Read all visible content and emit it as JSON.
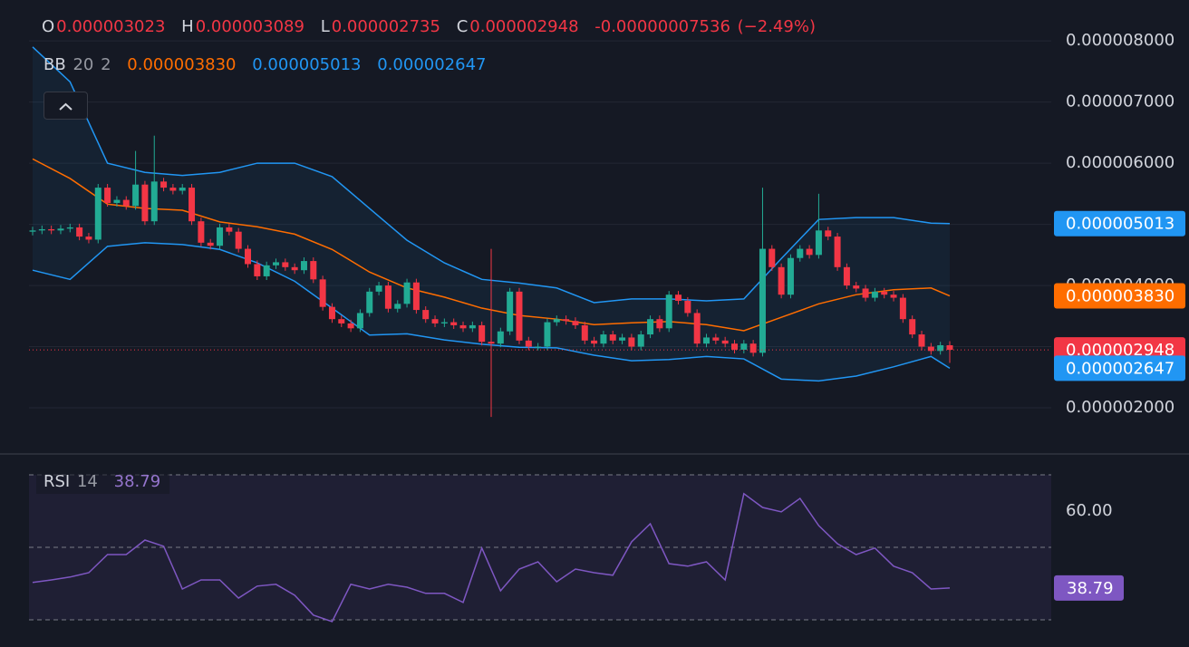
{
  "chart_data": [
    {
      "type": "candlestick",
      "legend": {
        "items": [
          {
            "key": "O",
            "value": 3.023e-06,
            "label": "0.000003023"
          },
          {
            "key": "H",
            "value": 3.089e-06,
            "label": "0.000003089"
          },
          {
            "key": "L",
            "value": 2.735e-06,
            "label": "0.000002735"
          },
          {
            "key": "C",
            "value": 2.948e-06,
            "label": "0.000002948"
          }
        ],
        "change": {
          "value": -7.536e-08,
          "label": "-0.00000007536"
        },
        "change_percent": {
          "value": -2.49,
          "label": "(−2.49%)"
        }
      },
      "open": [
        4.88e-06,
        4.9e-06,
        4.92e-06,
        4.9e-06,
        4.93e-06,
        4.95e-06,
        4.8e-06,
        4.75e-06,
        5.6e-06,
        5.35e-06,
        5.4e-06,
        5.3e-06,
        5.65e-06,
        5.05e-06,
        5.7e-06,
        5.6e-06,
        5.55e-06,
        5.6e-06,
        5.05e-06,
        4.7e-06,
        4.65e-06,
        4.95e-06,
        4.88e-06,
        4.6e-06,
        4.35e-06,
        4.15e-06,
        4.33e-06,
        4.38e-06,
        4.3e-06,
        4.25e-06,
        4.4e-06,
        4.1e-06,
        3.65e-06,
        3.45e-06,
        3.38e-06,
        3.3e-06,
        3.55e-06,
        3.9e-06,
        4e-06,
        3.62e-06,
        3.7e-06,
        4.05e-06,
        3.6e-06,
        3.45e-06,
        3.38e-06,
        3.4e-06,
        3.35e-06,
        3.3e-06,
        3.35e-06,
        3.08e-06,
        3.05e-06,
        3.25e-06,
        3.9e-06,
        3.1e-06,
        3e-06,
        3e-06,
        3.4e-06,
        3.45e-06,
        3.42e-06,
        3.35e-06,
        3.1e-06,
        3.05e-06,
        3.2e-06,
        3.1e-06,
        3.15e-06,
        3e-06,
        3.2e-06,
        3.45e-06,
        3.3e-06,
        3.85e-06,
        3.75e-06,
        3.55e-06,
        3.05e-06,
        3.15e-06,
        3.1e-06,
        3.05e-06,
        2.95e-06,
        3.05e-06,
        2.9e-06,
        4.6e-06,
        4.3e-06,
        3.85e-06,
        4.45e-06,
        4.6e-06,
        4.5e-06,
        4.9e-06,
        4.8e-06,
        4.3e-06,
        4e-06,
        3.95e-06,
        3.8e-06,
        3.9e-06,
        3.85e-06,
        3.8e-06,
        3.45e-06,
        3.2e-06,
        3e-06,
        2.93e-06,
        3.023e-06
      ],
      "high": [
        4.96e-06,
        4.98e-06,
        4.98e-06,
        4.99e-06,
        5.01e-06,
        5.01e-06,
        4.86e-06,
        5.66e-06,
        5.66e-06,
        5.46e-06,
        5.46e-06,
        6.2e-06,
        5.71e-06,
        6.45e-06,
        5.76e-06,
        5.66e-06,
        5.66e-06,
        5.66e-06,
        5.11e-06,
        4.76e-06,
        5.01e-06,
        5.01e-06,
        4.94e-06,
        4.66e-06,
        4.41e-06,
        4.39e-06,
        4.44e-06,
        4.44e-06,
        4.36e-06,
        4.46e-06,
        4.46e-06,
        4.16e-06,
        3.71e-06,
        3.51e-06,
        3.44e-06,
        3.61e-06,
        3.96e-06,
        4.06e-06,
        4.06e-06,
        3.76e-06,
        4.11e-06,
        4.11e-06,
        3.66e-06,
        3.51e-06,
        3.46e-06,
        3.46e-06,
        3.41e-06,
        3.41e-06,
        3.41e-06,
        4.6e-06,
        3.31e-06,
        3.96e-06,
        3.96e-06,
        3.16e-06,
        3.06e-06,
        3.46e-06,
        3.51e-06,
        3.51e-06,
        3.48e-06,
        3.41e-06,
        3.16e-06,
        3.26e-06,
        3.26e-06,
        3.21e-06,
        3.21e-06,
        3.26e-06,
        3.51e-06,
        3.51e-06,
        3.91e-06,
        3.91e-06,
        3.81e-06,
        3.61e-06,
        3.21e-06,
        3.21e-06,
        3.16e-06,
        3.11e-06,
        3.11e-06,
        3.11e-06,
        5.6e-06,
        4.66e-06,
        4.36e-06,
        4.51e-06,
        4.66e-06,
        4.66e-06,
        5.5e-06,
        4.96e-06,
        4.86e-06,
        4.36e-06,
        4.06e-06,
        4.01e-06,
        3.96e-06,
        3.96e-06,
        3.91e-06,
        3.86e-06,
        3.51e-06,
        3.26e-06,
        3.06e-06,
        3.08e-06,
        3.089e-06
      ],
      "low": [
        4.82e-06,
        4.84e-06,
        4.84e-06,
        4.84e-06,
        4.87e-06,
        4.74e-06,
        4.69e-06,
        4.69e-06,
        5.29e-06,
        5.29e-06,
        5.24e-06,
        5.24e-06,
        4.99e-06,
        4.99e-06,
        5.54e-06,
        5.49e-06,
        5.49e-06,
        4.99e-06,
        4.64e-06,
        4.59e-06,
        4.59e-06,
        4.82e-06,
        4.54e-06,
        4.29e-06,
        4.09e-06,
        4.09e-06,
        4.27e-06,
        4.24e-06,
        4.19e-06,
        4.19e-06,
        4.04e-06,
        3.59e-06,
        3.39e-06,
        3.32e-06,
        3.24e-06,
        3.24e-06,
        3.49e-06,
        3.84e-06,
        3.56e-06,
        3.56e-06,
        3.64e-06,
        3.54e-06,
        3.39e-06,
        3.32e-06,
        3.32e-06,
        3.29e-06,
        3.24e-06,
        3.24e-06,
        3.02e-06,
        1.85e-06,
        2.99e-06,
        3.19e-06,
        3.04e-06,
        2.94e-06,
        2.94e-06,
        2.94e-06,
        3.34e-06,
        3.36e-06,
        3.29e-06,
        3.04e-06,
        2.99e-06,
        2.99e-06,
        3.04e-06,
        3.04e-06,
        2.94e-06,
        2.94e-06,
        3.14e-06,
        3.24e-06,
        3.24e-06,
        3.69e-06,
        3.49e-06,
        2.99e-06,
        2.99e-06,
        3.04e-06,
        2.99e-06,
        2.89e-06,
        2.89e-06,
        2.84e-06,
        2.84e-06,
        4.24e-06,
        3.79e-06,
        3.79e-06,
        4.39e-06,
        4.44e-06,
        4.44e-06,
        4.74e-06,
        4.24e-06,
        3.94e-06,
        3.89e-06,
        3.74e-06,
        3.74e-06,
        3.79e-06,
        3.74e-06,
        3.39e-06,
        3.14e-06,
        2.94e-06,
        2.87e-06,
        2.87e-06,
        2.735e-06
      ],
      "close": [
        4.9e-06,
        4.92e-06,
        4.9e-06,
        4.93e-06,
        4.95e-06,
        4.8e-06,
        4.75e-06,
        5.6e-06,
        5.35e-06,
        5.4e-06,
        5.3e-06,
        5.65e-06,
        5.05e-06,
        5.7e-06,
        5.6e-06,
        5.55e-06,
        5.6e-06,
        5.05e-06,
        4.7e-06,
        4.65e-06,
        4.95e-06,
        4.88e-06,
        4.6e-06,
        4.35e-06,
        4.15e-06,
        4.33e-06,
        4.38e-06,
        4.3e-06,
        4.25e-06,
        4.4e-06,
        4.1e-06,
        3.65e-06,
        3.45e-06,
        3.38e-06,
        3.3e-06,
        3.55e-06,
        3.9e-06,
        4e-06,
        3.62e-06,
        3.7e-06,
        4.05e-06,
        3.6e-06,
        3.45e-06,
        3.38e-06,
        3.4e-06,
        3.35e-06,
        3.3e-06,
        3.35e-06,
        3.08e-06,
        3.05e-06,
        3.25e-06,
        3.9e-06,
        3.1e-06,
        3e-06,
        3e-06,
        3.4e-06,
        3.45e-06,
        3.42e-06,
        3.35e-06,
        3.1e-06,
        3.05e-06,
        3.2e-06,
        3.1e-06,
        3.15e-06,
        3e-06,
        3.2e-06,
        3.45e-06,
        3.3e-06,
        3.85e-06,
        3.75e-06,
        3.55e-06,
        3.05e-06,
        3.15e-06,
        3.1e-06,
        3.05e-06,
        2.95e-06,
        3.05e-06,
        2.9e-06,
        4.6e-06,
        4.3e-06,
        3.85e-06,
        4.45e-06,
        4.6e-06,
        4.5e-06,
        4.9e-06,
        4.8e-06,
        4.3e-06,
        4e-06,
        3.95e-06,
        3.8e-06,
        3.9e-06,
        3.85e-06,
        3.8e-06,
        3.45e-06,
        3.2e-06,
        3e-06,
        2.93e-06,
        3.023e-06,
        2.948e-06
      ],
      "up_color": "#22ab94",
      "down_color": "#f23645",
      "ylim": [
        1.26e-06,
        8.52e-06
      ],
      "yticks": [
        {
          "value": 2e-06,
          "label": "0.000002000"
        },
        {
          "value": 3e-06,
          "label": "0.000003000"
        },
        {
          "value": 4e-06,
          "label": "0.000004000"
        },
        {
          "value": 5e-06,
          "label": "0.000005000"
        },
        {
          "value": 6e-06,
          "label": "0.000006000"
        },
        {
          "value": 7e-06,
          "label": "0.000007000"
        },
        {
          "value": 8e-06,
          "label": "0.000008000"
        }
      ],
      "grid": true,
      "last_price_line": true,
      "bollinger": {
        "name": "BB",
        "period": 20,
        "stddev": 2,
        "fill": "rgba(33,150,243,0.07)",
        "candle_index": [
          0,
          4,
          8,
          12,
          16,
          20,
          24,
          28,
          32,
          36,
          40,
          44,
          48,
          52,
          56,
          60,
          64,
          68,
          72,
          76,
          80,
          84,
          88,
          92,
          96,
          98
        ],
        "middle": {
          "color": "#ff6d00",
          "values": [
            6.07e-06,
            5.75e-06,
            5.33e-06,
            5.26e-06,
            5.23e-06,
            5.04e-06,
            4.96e-06,
            4.84e-06,
            4.59e-06,
            4.22e-06,
            3.96e-06,
            3.81e-06,
            3.63e-06,
            3.51e-06,
            3.45e-06,
            3.36e-06,
            3.39e-06,
            3.41e-06,
            3.36e-06,
            3.26e-06,
            3.48e-06,
            3.7e-06,
            3.85e-06,
            3.93e-06,
            3.96e-06,
            3.83e-06
          ],
          "last": {
            "value": 3.83e-06,
            "label": "0.000003830"
          }
        },
        "upper": {
          "color": "#2196f3",
          "values": [
            7.9e-06,
            7.33e-06,
            6e-06,
            5.85e-06,
            5.8e-06,
            5.85e-06,
            6e-06,
            6e-06,
            5.78e-06,
            5.26e-06,
            4.74e-06,
            4.37e-06,
            4.1e-06,
            4.04e-06,
            3.96e-06,
            3.72e-06,
            3.78e-06,
            3.78e-06,
            3.75e-06,
            3.78e-06,
            4.44e-06,
            5.08e-06,
            5.11e-06,
            5.11e-06,
            5.02e-06,
            5.013e-06
          ],
          "last": {
            "value": 5.013e-06,
            "label": "0.000005013"
          }
        },
        "lower": {
          "color": "#2196f3",
          "values": [
            4.25e-06,
            4.1e-06,
            4.64e-06,
            4.7e-06,
            4.67e-06,
            4.59e-06,
            4.37e-06,
            4.07e-06,
            3.63e-06,
            3.19e-06,
            3.21e-06,
            3.11e-06,
            3.04e-06,
            2.99e-06,
            2.98e-06,
            2.86e-06,
            2.77e-06,
            2.79e-06,
            2.84e-06,
            2.8e-06,
            2.47e-06,
            2.44e-06,
            2.52e-06,
            2.67e-06,
            2.84e-06,
            2.647e-06
          ],
          "last": {
            "value": 2.647e-06,
            "label": "0.000002647"
          }
        }
      }
    },
    {
      "type": "line",
      "legend": {
        "name": "RSI",
        "period": 14,
        "last": 38.79
      },
      "candle_index": [
        0,
        2,
        4,
        6,
        8,
        10,
        12,
        14,
        16,
        18,
        20,
        22,
        24,
        26,
        28,
        30,
        32,
        34,
        36,
        38,
        40,
        42,
        44,
        46,
        48,
        50,
        52,
        54,
        56,
        58,
        60,
        62,
        64,
        66,
        68,
        70,
        72,
        74,
        76,
        78,
        80,
        82,
        84,
        86,
        88,
        90,
        92,
        94,
        96,
        98
      ],
      "values": [
        40.3,
        41,
        41.8,
        43,
        48,
        48,
        52,
        50.3,
        38.5,
        41,
        41,
        36,
        39.3,
        39.8,
        36.8,
        31.3,
        29.5,
        39.8,
        38.5,
        39.8,
        39,
        37.3,
        37.3,
        34.8,
        49.8,
        38,
        44,
        46,
        40.5,
        44,
        43,
        42.3,
        51.5,
        56.5,
        45.5,
        44.8,
        46,
        41,
        64.8,
        61,
        59.8,
        63.5,
        56,
        51,
        48,
        49.8,
        44.8,
        43,
        38.5,
        38.79
      ],
      "color": "#7e57c2",
      "ylim": [
        24,
        72
      ],
      "yticks": [
        {
          "value": 60,
          "label": "60.00"
        }
      ],
      "levels": [
        30,
        50,
        70
      ]
    }
  ]
}
